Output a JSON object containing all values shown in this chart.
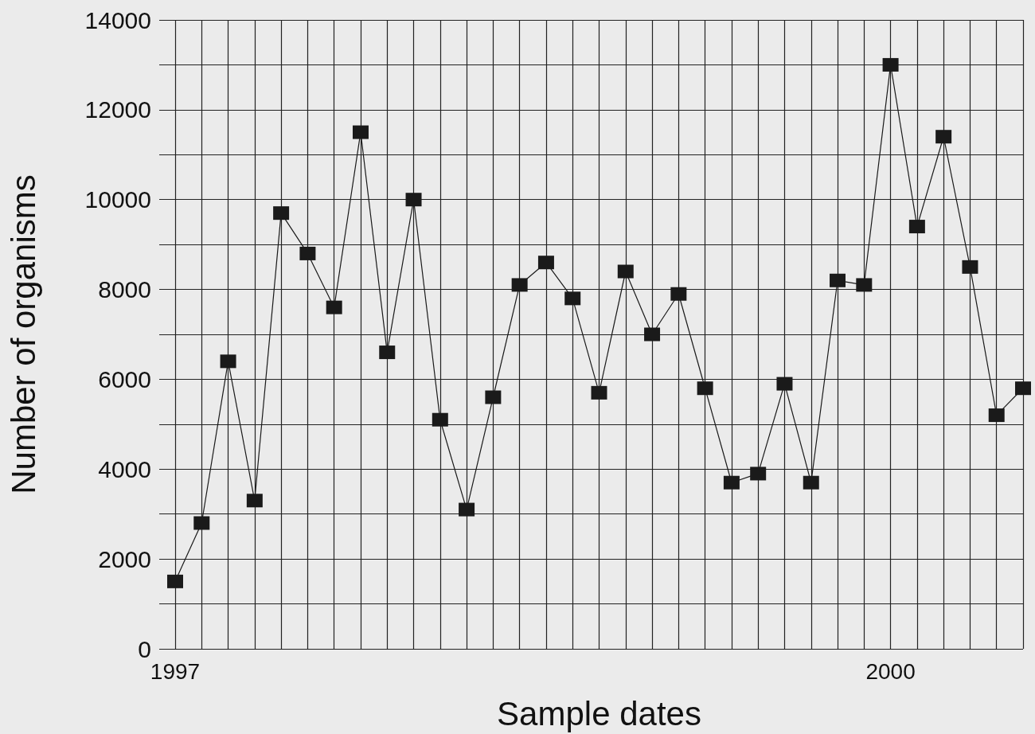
{
  "chart_data": {
    "type": "line",
    "xlabel": "Sample dates",
    "ylabel": "Number of organisms",
    "categories": [
      "1997",
      null,
      null,
      null,
      null,
      null,
      null,
      null,
      null,
      null,
      null,
      null,
      null,
      null,
      null,
      null,
      null,
      null,
      null,
      null,
      null,
      null,
      null,
      null,
      null,
      null,
      null,
      "2000",
      null,
      null,
      null,
      null,
      null
    ],
    "series": [
      {
        "color": "#1a1a1a",
        "values": [
          1500,
          2800,
          6400,
          3300,
          9700,
          8800,
          7600,
          11500,
          6600,
          10000,
          5100,
          3100,
          5600,
          8100,
          8600,
          7800,
          5700,
          8400,
          7000,
          7900,
          5800,
          3700,
          3900,
          5900,
          3700,
          8200,
          8100,
          13000,
          9400,
          11400,
          8500,
          5200,
          5800
        ]
      }
    ],
    "ylim": [
      0,
      14000
    ],
    "yticks": [
      0,
      {
        "value": 1000,
        "label": null
      },
      2000,
      {
        "value": 3000,
        "label": null
      },
      4000,
      {
        "value": 5000,
        "label": null
      },
      6000,
      {
        "value": 7000,
        "label": null
      },
      8000,
      {
        "value": 9000,
        "label": null
      },
      10000,
      {
        "value": 11000,
        "label": null
      },
      12000,
      {
        "value": 13000,
        "label": null
      },
      14000
    ],
    "grid": true,
    "marker": "square",
    "line_style": "solid"
  }
}
